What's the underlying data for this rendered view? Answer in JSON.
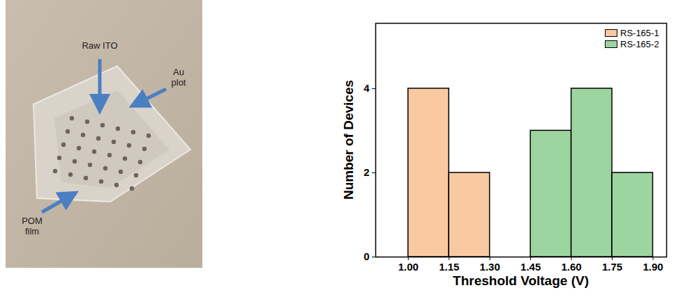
{
  "chart_data": {
    "type": "histogram",
    "bins": [
      1.0,
      1.15,
      1.3,
      1.45,
      1.6,
      1.75,
      1.9
    ],
    "series": [
      {
        "name": "RS-165-1",
        "color": "#f9c9a1",
        "values": [
          4,
          2,
          0,
          0,
          0,
          0
        ]
      },
      {
        "name": "RS-165-2",
        "color": "#9dd5a0",
        "values": [
          0,
          0,
          0,
          3,
          4,
          2
        ]
      }
    ],
    "xlabel": "Threshold Voltage (V)",
    "ylabel": "Number of Devices",
    "xlim": [
      0.88,
      1.95
    ],
    "ylim": [
      0,
      5.55
    ],
    "xticks": [
      {
        "value": 1.0,
        "label": "1.00"
      },
      {
        "value": 1.15,
        "label": "1.15"
      },
      {
        "value": 1.3,
        "label": "1.30"
      },
      {
        "value": 1.45,
        "label": "1.45"
      },
      {
        "value": 1.6,
        "label": "1.60"
      },
      {
        "value": 1.75,
        "label": "1.75"
      },
      {
        "value": 1.9,
        "label": "1.90"
      }
    ],
    "yticks": [
      0,
      2,
      4
    ],
    "legend": "top-right"
  },
  "photo": {
    "labels": [
      "Raw ITO",
      "Au plot",
      "POM film"
    ]
  }
}
